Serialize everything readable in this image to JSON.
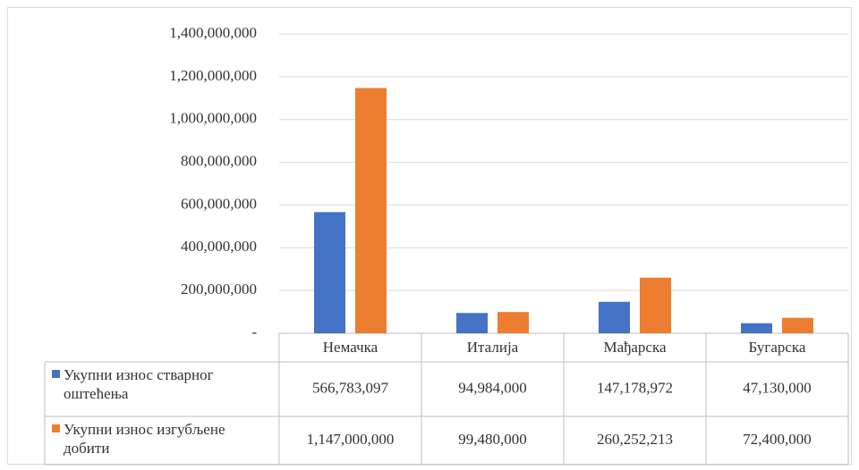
{
  "chart_data": {
    "type": "bar",
    "categories": [
      "Немачка",
      "Италија",
      "Мађарска",
      "Бугарска"
    ],
    "series": [
      {
        "name": "Укупни износ стварног оштећења",
        "color": "#4472c4",
        "values": [
          566783097,
          94984000,
          147178972,
          47130000
        ],
        "value_labels": [
          "566,783,097",
          "94,984,000",
          "147,178,972",
          "47,130,000"
        ]
      },
      {
        "name": "Укупни износ изгубљене добити",
        "color": "#ed7d31",
        "values": [
          1147000000,
          99480000,
          260252213,
          72400000
        ],
        "value_labels": [
          "1,147,000,000",
          "99,480,000",
          "260,252,213",
          "72,400,000"
        ]
      }
    ],
    "ylim": [
      0,
      1400000000
    ],
    "yticks": [
      {
        "value": 0,
        "label": "-"
      },
      {
        "value": 200000000,
        "label": "200,000,000"
      },
      {
        "value": 400000000,
        "label": "400,000,000"
      },
      {
        "value": 600000000,
        "label": "600,000,000"
      },
      {
        "value": 800000000,
        "label": "800,000,000"
      },
      {
        "value": 1000000000,
        "label": "1,000,000,000"
      },
      {
        "value": 1200000000,
        "label": "1,200,000,000"
      },
      {
        "value": 1400000000,
        "label": "1,400,000,000"
      }
    ],
    "grid": true
  }
}
